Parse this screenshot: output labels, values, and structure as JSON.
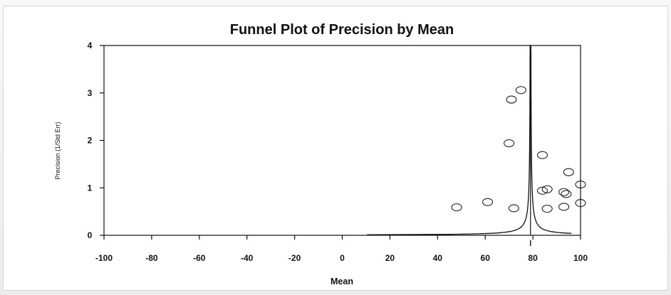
{
  "chart_data": {
    "type": "scatter",
    "title": "Funnel Plot of Precision by Mean",
    "xlabel": "Mean",
    "ylabel": "Precision (1/Std Err)",
    "xlim": [
      -100,
      100
    ],
    "ylim": [
      0,
      4
    ],
    "x_ticks": [
      -100,
      -80,
      -60,
      -40,
      -20,
      0,
      20,
      40,
      60,
      80,
      100
    ],
    "y_ticks": [
      0,
      1,
      2,
      3,
      4
    ],
    "grid": false,
    "legend": "none",
    "combined_mean": 79,
    "points": [
      {
        "x": 48,
        "y": 0.59
      },
      {
        "x": 61,
        "y": 0.7
      },
      {
        "x": 70,
        "y": 1.94
      },
      {
        "x": 71,
        "y": 2.86
      },
      {
        "x": 72,
        "y": 0.57
      },
      {
        "x": 75,
        "y": 3.06
      },
      {
        "x": 84,
        "y": 1.69
      },
      {
        "x": 84,
        "y": 0.94
      },
      {
        "x": 86,
        "y": 0.97
      },
      {
        "x": 86,
        "y": 0.56
      },
      {
        "x": 93,
        "y": 0.6
      },
      {
        "x": 93,
        "y": 0.91
      },
      {
        "x": 94,
        "y": 0.87
      },
      {
        "x": 95,
        "y": 1.33
      },
      {
        "x": 100,
        "y": 1.07
      },
      {
        "x": 100,
        "y": 0.68
      }
    ],
    "marker": "open-circle",
    "colors": {
      "marker": "#222222",
      "line": "#111111",
      "axis": "#111111"
    }
  }
}
